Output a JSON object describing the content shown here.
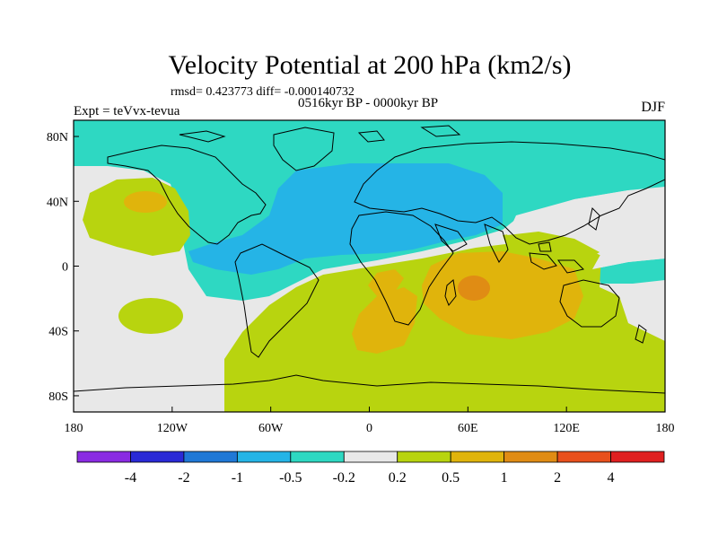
{
  "chart_data": {
    "type": "filled-contour-map",
    "title": "Velocity Potential at 200 hPa (km2/s)",
    "stats_line": "rmsd= 0.423773 diff= -0.000140732",
    "period": "0516kyr BP - 0000kyr BP",
    "experiment": "Expt = teVvx-tevua",
    "season": "DJF",
    "x_axis": {
      "range": [
        -180,
        180
      ],
      "ticks": [
        -180,
        -120,
        -60,
        0,
        60,
        120,
        180
      ],
      "tick_labels": [
        "180",
        "120W",
        "60W",
        "0",
        "60E",
        "120E",
        "180"
      ]
    },
    "y_axis": {
      "range": [
        -90,
        90
      ],
      "ticks": [
        80,
        40,
        0,
        -40,
        -80
      ],
      "tick_labels": [
        "80N",
        "40N",
        "0",
        "40S",
        "80S"
      ]
    },
    "colorbar": {
      "levels": [
        "-4",
        "-2",
        "-1",
        "-0.5",
        "-0.2",
        "0.2",
        "0.5",
        "1",
        "2",
        "4"
      ],
      "colors": [
        "#8a2be2",
        "#2a2ad6",
        "#1f78d6",
        "#25b4e6",
        "#2ed8c2",
        "#e8e8e8",
        "#b8d40f",
        "#e0b40c",
        "#e08c14",
        "#e8501c",
        "#e02020"
      ]
    },
    "regions": [
      {
        "name": "high-latitude-north",
        "range": "-0.5 to -0.2"
      },
      {
        "name": "atlantic-africa-negative",
        "range": "-1 to -0.5"
      },
      {
        "name": "southern-ocean-positive",
        "range": "0.2 to 0.5"
      },
      {
        "name": "indian-ocean-max",
        "range": "1 to 2"
      },
      {
        "name": "south-atlantic-positive",
        "range": "0.5 to 1"
      },
      {
        "name": "north-pacific-positive",
        "range": "0.5 to 1"
      },
      {
        "name": "eastern-pacific-neutral",
        "range": "-0.2 to 0.2"
      }
    ]
  }
}
